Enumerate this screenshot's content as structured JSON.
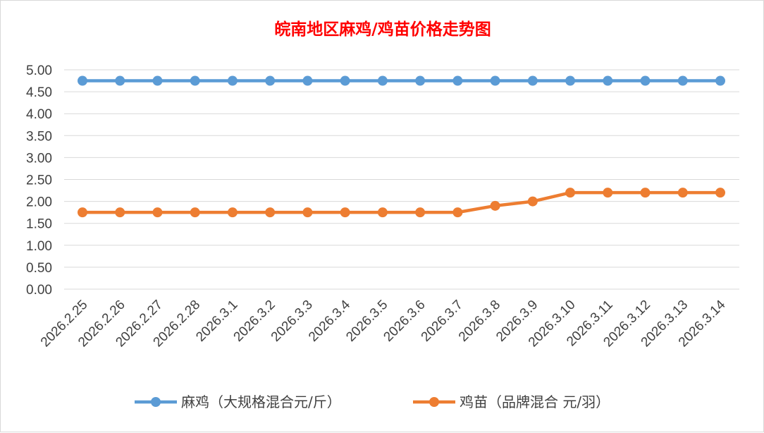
{
  "chart_data": {
    "type": "line",
    "title": "皖南地区麻鸡/鸡苗价格走势图",
    "categories": [
      "2026.2.25",
      "2026.2.26",
      "2026.2.27",
      "2026.2.28",
      "2026.3.1",
      "2026.3.2",
      "2026.3.3",
      "2026.3.4",
      "2026.3.5",
      "2026.3.6",
      "2026.3.7",
      "2026.3.8",
      "2026.3.9",
      "2026.3.10",
      "2026.3.11",
      "2026.3.12",
      "2026.3.13",
      "2026.3.14"
    ],
    "ylim": [
      0,
      5
    ],
    "yticks": [
      "0.00",
      "0.50",
      "1.00",
      "1.50",
      "2.00",
      "2.50",
      "3.00",
      "3.50",
      "4.00",
      "4.50",
      "5.00"
    ],
    "grid": true,
    "legend_position": "bottom",
    "series": [
      {
        "name": "麻鸡（大规格混合元/斤）",
        "color": "#5b9bd5",
        "values": [
          4.75,
          4.75,
          4.75,
          4.75,
          4.75,
          4.75,
          4.75,
          4.75,
          4.75,
          4.75,
          4.75,
          4.75,
          4.75,
          4.75,
          4.75,
          4.75,
          4.75,
          4.75
        ]
      },
      {
        "name": "鸡苗（品牌混合 元/羽）",
        "color": "#ed7d31",
        "values": [
          1.75,
          1.75,
          1.75,
          1.75,
          1.75,
          1.75,
          1.75,
          1.75,
          1.75,
          1.75,
          1.75,
          1.9,
          2.0,
          2.2,
          2.2,
          2.2,
          2.2,
          2.2
        ]
      }
    ],
    "title_color": "#ff0000"
  }
}
